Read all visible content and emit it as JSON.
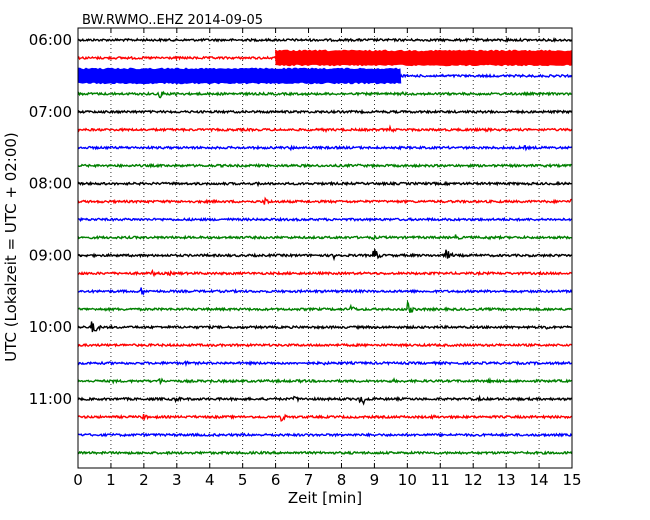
{
  "chart_data": {
    "type": "line",
    "title": "BW.RWMO..EHZ 2014-09-05",
    "xlabel": "Zeit  [min]",
    "ylabel": "UTC (Lokalzeit = UTC + 02:00)",
    "xlim": [
      0,
      15
    ],
    "x_ticks": [
      "0",
      "1",
      "2",
      "3",
      "4",
      "5",
      "6",
      "7",
      "8",
      "9",
      "10",
      "11",
      "12",
      "13",
      "14",
      "15"
    ],
    "y_ticks": [
      "06:00",
      "07:00",
      "08:00",
      "09:00",
      "10:00",
      "11:00"
    ],
    "trace_interval_minutes": 15,
    "first_trace": "06:00",
    "colors": [
      "#000000",
      "#ff0000",
      "#0000ff",
      "#008000"
    ],
    "grid": "vertical dotted",
    "traces": [
      {
        "start": "06:00",
        "color": "#000000",
        "events": [
          {
            "t": 13.0,
            "amp": 2
          }
        ]
      },
      {
        "start": "06:15",
        "color": "#ff0000",
        "events": [
          {
            "t_start": 6.0,
            "t_end": 15.0,
            "amp": 7,
            "kind": "saturated"
          }
        ]
      },
      {
        "start": "06:30",
        "color": "#0000ff",
        "events": [
          {
            "t_start": 0.0,
            "t_end": 9.8,
            "amp": 7,
            "kind": "saturated"
          }
        ]
      },
      {
        "start": "06:45",
        "color": "#008000",
        "events": [
          {
            "t": 2.5,
            "amp": 4
          },
          {
            "t": 3.0,
            "amp": 3
          },
          {
            "t": 9.9,
            "amp": 2
          }
        ]
      },
      {
        "start": "07:00",
        "color": "#000000",
        "events": [
          {
            "t": 12.6,
            "amp": 2
          }
        ]
      },
      {
        "start": "07:15",
        "color": "#ff0000",
        "events": [
          {
            "t": 7.5,
            "amp": 2
          },
          {
            "t": 9.5,
            "amp": 3
          },
          {
            "t": 12.4,
            "amp": 2
          }
        ]
      },
      {
        "start": "07:30",
        "color": "#0000ff",
        "events": [
          {
            "t": 6.5,
            "amp": 2
          },
          {
            "t": 13.6,
            "amp": 2
          }
        ]
      },
      {
        "start": "07:45",
        "color": "#008000",
        "events": [
          {
            "t": 8.5,
            "amp": 2
          }
        ]
      },
      {
        "start": "08:00",
        "color": "#000000",
        "events": [
          {
            "t": 5.5,
            "amp": 2
          }
        ]
      },
      {
        "start": "08:15",
        "color": "#ff0000",
        "events": [
          {
            "t": 5.7,
            "amp": 4
          },
          {
            "t": 15.0,
            "amp": 3
          }
        ]
      },
      {
        "start": "08:30",
        "color": "#0000ff",
        "events": [
          {
            "t": 10.5,
            "amp": 1
          }
        ]
      },
      {
        "start": "08:45",
        "color": "#008000",
        "events": [
          {
            "t": 9.0,
            "amp": 2
          },
          {
            "t": 11.5,
            "amp": 3
          },
          {
            "t": 12.5,
            "amp": 2
          }
        ]
      },
      {
        "start": "09:00",
        "color": "#000000",
        "events": [
          {
            "t": 7.8,
            "amp": 4
          },
          {
            "t": 9.0,
            "amp": 7
          },
          {
            "t": 11.2,
            "amp": 6
          }
        ]
      },
      {
        "start": "09:15",
        "color": "#ff0000",
        "events": [
          {
            "t": 2.3,
            "amp": 3
          },
          {
            "t": 2.8,
            "amp": 2
          }
        ]
      },
      {
        "start": "09:30",
        "color": "#0000ff",
        "events": [
          {
            "t": 1.9,
            "amp": 5
          }
        ]
      },
      {
        "start": "09:45",
        "color": "#008000",
        "events": [
          {
            "t": 8.3,
            "amp": 4
          },
          {
            "t": 10.0,
            "amp": 8
          }
        ]
      },
      {
        "start": "10:00",
        "color": "#000000",
        "events": [
          {
            "t": 0.45,
            "amp": 8
          },
          {
            "t": 14.2,
            "amp": 3
          }
        ]
      },
      {
        "start": "10:15",
        "color": "#ff0000",
        "events": [
          {
            "t": 14.2,
            "amp": 1
          }
        ]
      },
      {
        "start": "10:30",
        "color": "#0000ff",
        "events": [
          {
            "t": 3.3,
            "amp": 2
          },
          {
            "t": 7.5,
            "amp": 2
          }
        ]
      },
      {
        "start": "10:45",
        "color": "#008000",
        "events": [
          {
            "t": 1.1,
            "amp": 2
          },
          {
            "t": 2.5,
            "amp": 3
          },
          {
            "t": 4.0,
            "amp": 2
          },
          {
            "t": 6.8,
            "amp": 2
          },
          {
            "t": 9.6,
            "amp": 2
          },
          {
            "t": 12.5,
            "amp": 2
          }
        ]
      },
      {
        "start": "11:00",
        "color": "#000000",
        "events": [
          {
            "t": 3.0,
            "amp": 3
          },
          {
            "t": 6.6,
            "amp": 3
          },
          {
            "t": 8.6,
            "amp": 8
          },
          {
            "t": 12.2,
            "amp": 2
          }
        ]
      },
      {
        "start": "11:15",
        "color": "#ff0000",
        "events": [
          {
            "t": 2.0,
            "amp": 3
          },
          {
            "t": 6.2,
            "amp": 4
          },
          {
            "t": 10.8,
            "amp": 2
          }
        ]
      },
      {
        "start": "11:30",
        "color": "#0000ff",
        "events": []
      },
      {
        "start": "11:45",
        "color": "#008000",
        "events": [
          {
            "t": 4.2,
            "amp": 1
          }
        ]
      }
    ]
  }
}
